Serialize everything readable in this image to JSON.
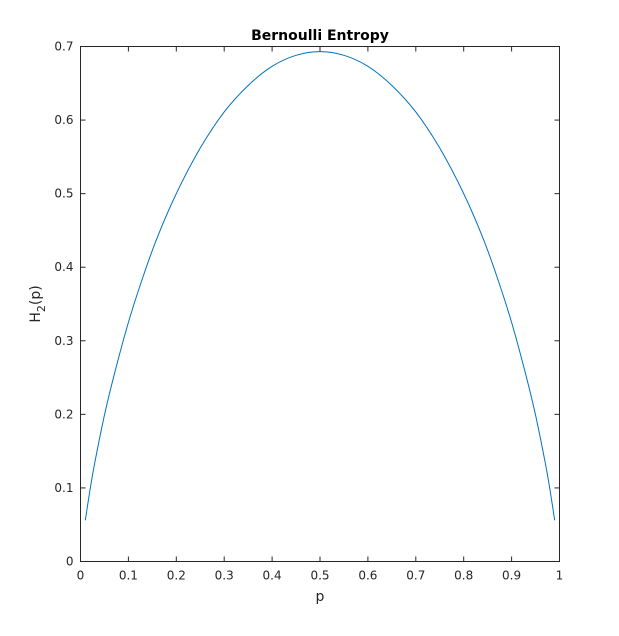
{
  "chart_data": {
    "type": "line",
    "title": "Bernoulli Entropy",
    "xlabel": "p",
    "ylabel_main": "H",
    "ylabel_subscript": "2",
    "ylabel_suffix": "(p)",
    "xlim": [
      0,
      1
    ],
    "ylim": [
      0,
      0.7
    ],
    "xticks": [
      0,
      0.1,
      0.2,
      0.3,
      0.4,
      0.5,
      0.6,
      0.7,
      0.8,
      0.9,
      1
    ],
    "xtick_labels": [
      "0",
      "0.1",
      "0.2",
      "0.3",
      "0.4",
      "0.5",
      "0.6",
      "0.7",
      "0.8",
      "0.9",
      "1"
    ],
    "yticks": [
      0,
      0.1,
      0.2,
      0.3,
      0.4,
      0.5,
      0.6,
      0.7
    ],
    "ytick_labels": [
      "0",
      "0.1",
      "0.2",
      "0.3",
      "0.4",
      "0.5",
      "0.6",
      "0.7"
    ],
    "grid": false,
    "box": true,
    "series": [
      {
        "color": "#0072bd",
        "x": [
          0.01,
          0.02,
          0.03,
          0.05,
          0.07,
          0.1,
          0.13,
          0.16,
          0.2,
          0.25,
          0.3,
          0.35,
          0.4,
          0.45,
          0.5,
          0.55,
          0.6,
          0.65,
          0.7,
          0.75,
          0.8,
          0.84,
          0.87,
          0.9,
          0.93,
          0.95,
          0.97,
          0.98,
          0.99
        ],
        "y": [
          0.056,
          0.098,
          0.135,
          0.199,
          0.253,
          0.325,
          0.386,
          0.44,
          0.5,
          0.562,
          0.611,
          0.647,
          0.673,
          0.688,
          0.693,
          0.688,
          0.673,
          0.647,
          0.611,
          0.562,
          0.5,
          0.44,
          0.386,
          0.325,
          0.253,
          0.199,
          0.135,
          0.098,
          0.056
        ]
      }
    ]
  }
}
